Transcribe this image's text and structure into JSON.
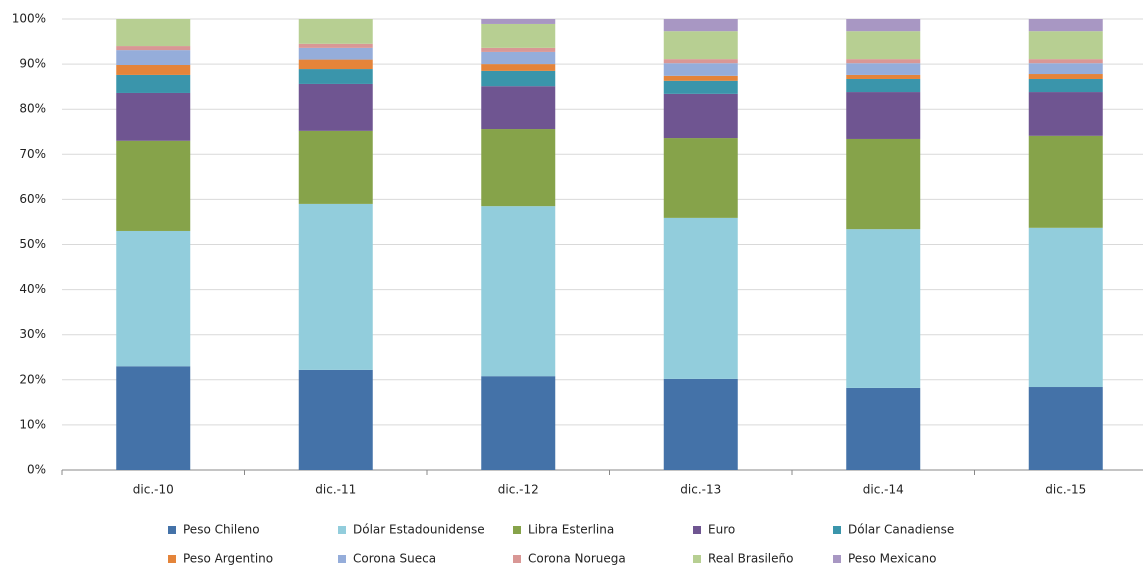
{
  "chart_data": {
    "type": "stacked_bar",
    "categories": [
      "dic.-10",
      "dic.-11",
      "dic.-12",
      "dic.-13",
      "dic.-14",
      "dic.-15"
    ],
    "series": [
      {
        "name": "Peso Chileno",
        "color": "#4472a8",
        "values": [
          23,
          22.2,
          20.8,
          20.2,
          18.2,
          18.4
        ]
      },
      {
        "name": "Dólar Estadounidense",
        "color": "#92cddc",
        "values": [
          30,
          36.8,
          37.7,
          35.7,
          35.2,
          35.3
        ]
      },
      {
        "name": "Libra Esterlina",
        "color": "#86a34a",
        "values": [
          20,
          16.2,
          17.1,
          17.7,
          20,
          20.4
        ]
      },
      {
        "name": "Euro",
        "color": "#6f5591",
        "values": [
          10.6,
          10.4,
          9.5,
          9.8,
          10.4,
          9.7
        ]
      },
      {
        "name": "Dólar Canadiense",
        "color": "#3a95ab",
        "values": [
          4,
          3.3,
          3.4,
          2.9,
          2.9,
          2.9
        ]
      },
      {
        "name": "Peso Argentino",
        "color": "#e4843a",
        "values": [
          2.2,
          2.1,
          1.5,
          1.1,
          0.9,
          1.1
        ]
      },
      {
        "name": "Corona Sueca",
        "color": "#95adda",
        "values": [
          3.3,
          2.6,
          2.7,
          2.8,
          2.6,
          2.4
        ]
      },
      {
        "name": "Corona Noruega",
        "color": "#d99795",
        "values": [
          0.9,
          0.9,
          0.9,
          0.9,
          0.9,
          0.9
        ]
      },
      {
        "name": "Real Brasileño",
        "color": "#b7cf92",
        "values": [
          6,
          5.5,
          5.3,
          6.2,
          6.2,
          6.2
        ]
      },
      {
        "name": "Peso Mexicano",
        "color": "#a897c3",
        "values": [
          0,
          0,
          1.1,
          2.7,
          2.7,
          2.7
        ]
      }
    ],
    "ylim": [
      0,
      100
    ],
    "yticks": [
      {
        "value": 0,
        "label": "0%"
      },
      {
        "value": 10,
        "label": "10%"
      },
      {
        "value": 20,
        "label": "20%"
      },
      {
        "value": 30,
        "label": "30%"
      },
      {
        "value": 40,
        "label": "40%"
      },
      {
        "value": 50,
        "label": "50%"
      },
      {
        "value": 60,
        "label": "60%"
      },
      {
        "value": 70,
        "label": "70%"
      },
      {
        "value": 80,
        "label": "80%"
      },
      {
        "value": 90,
        "label": "90%"
      },
      {
        "value": 100,
        "label": "100%"
      }
    ],
    "grid": true
  }
}
